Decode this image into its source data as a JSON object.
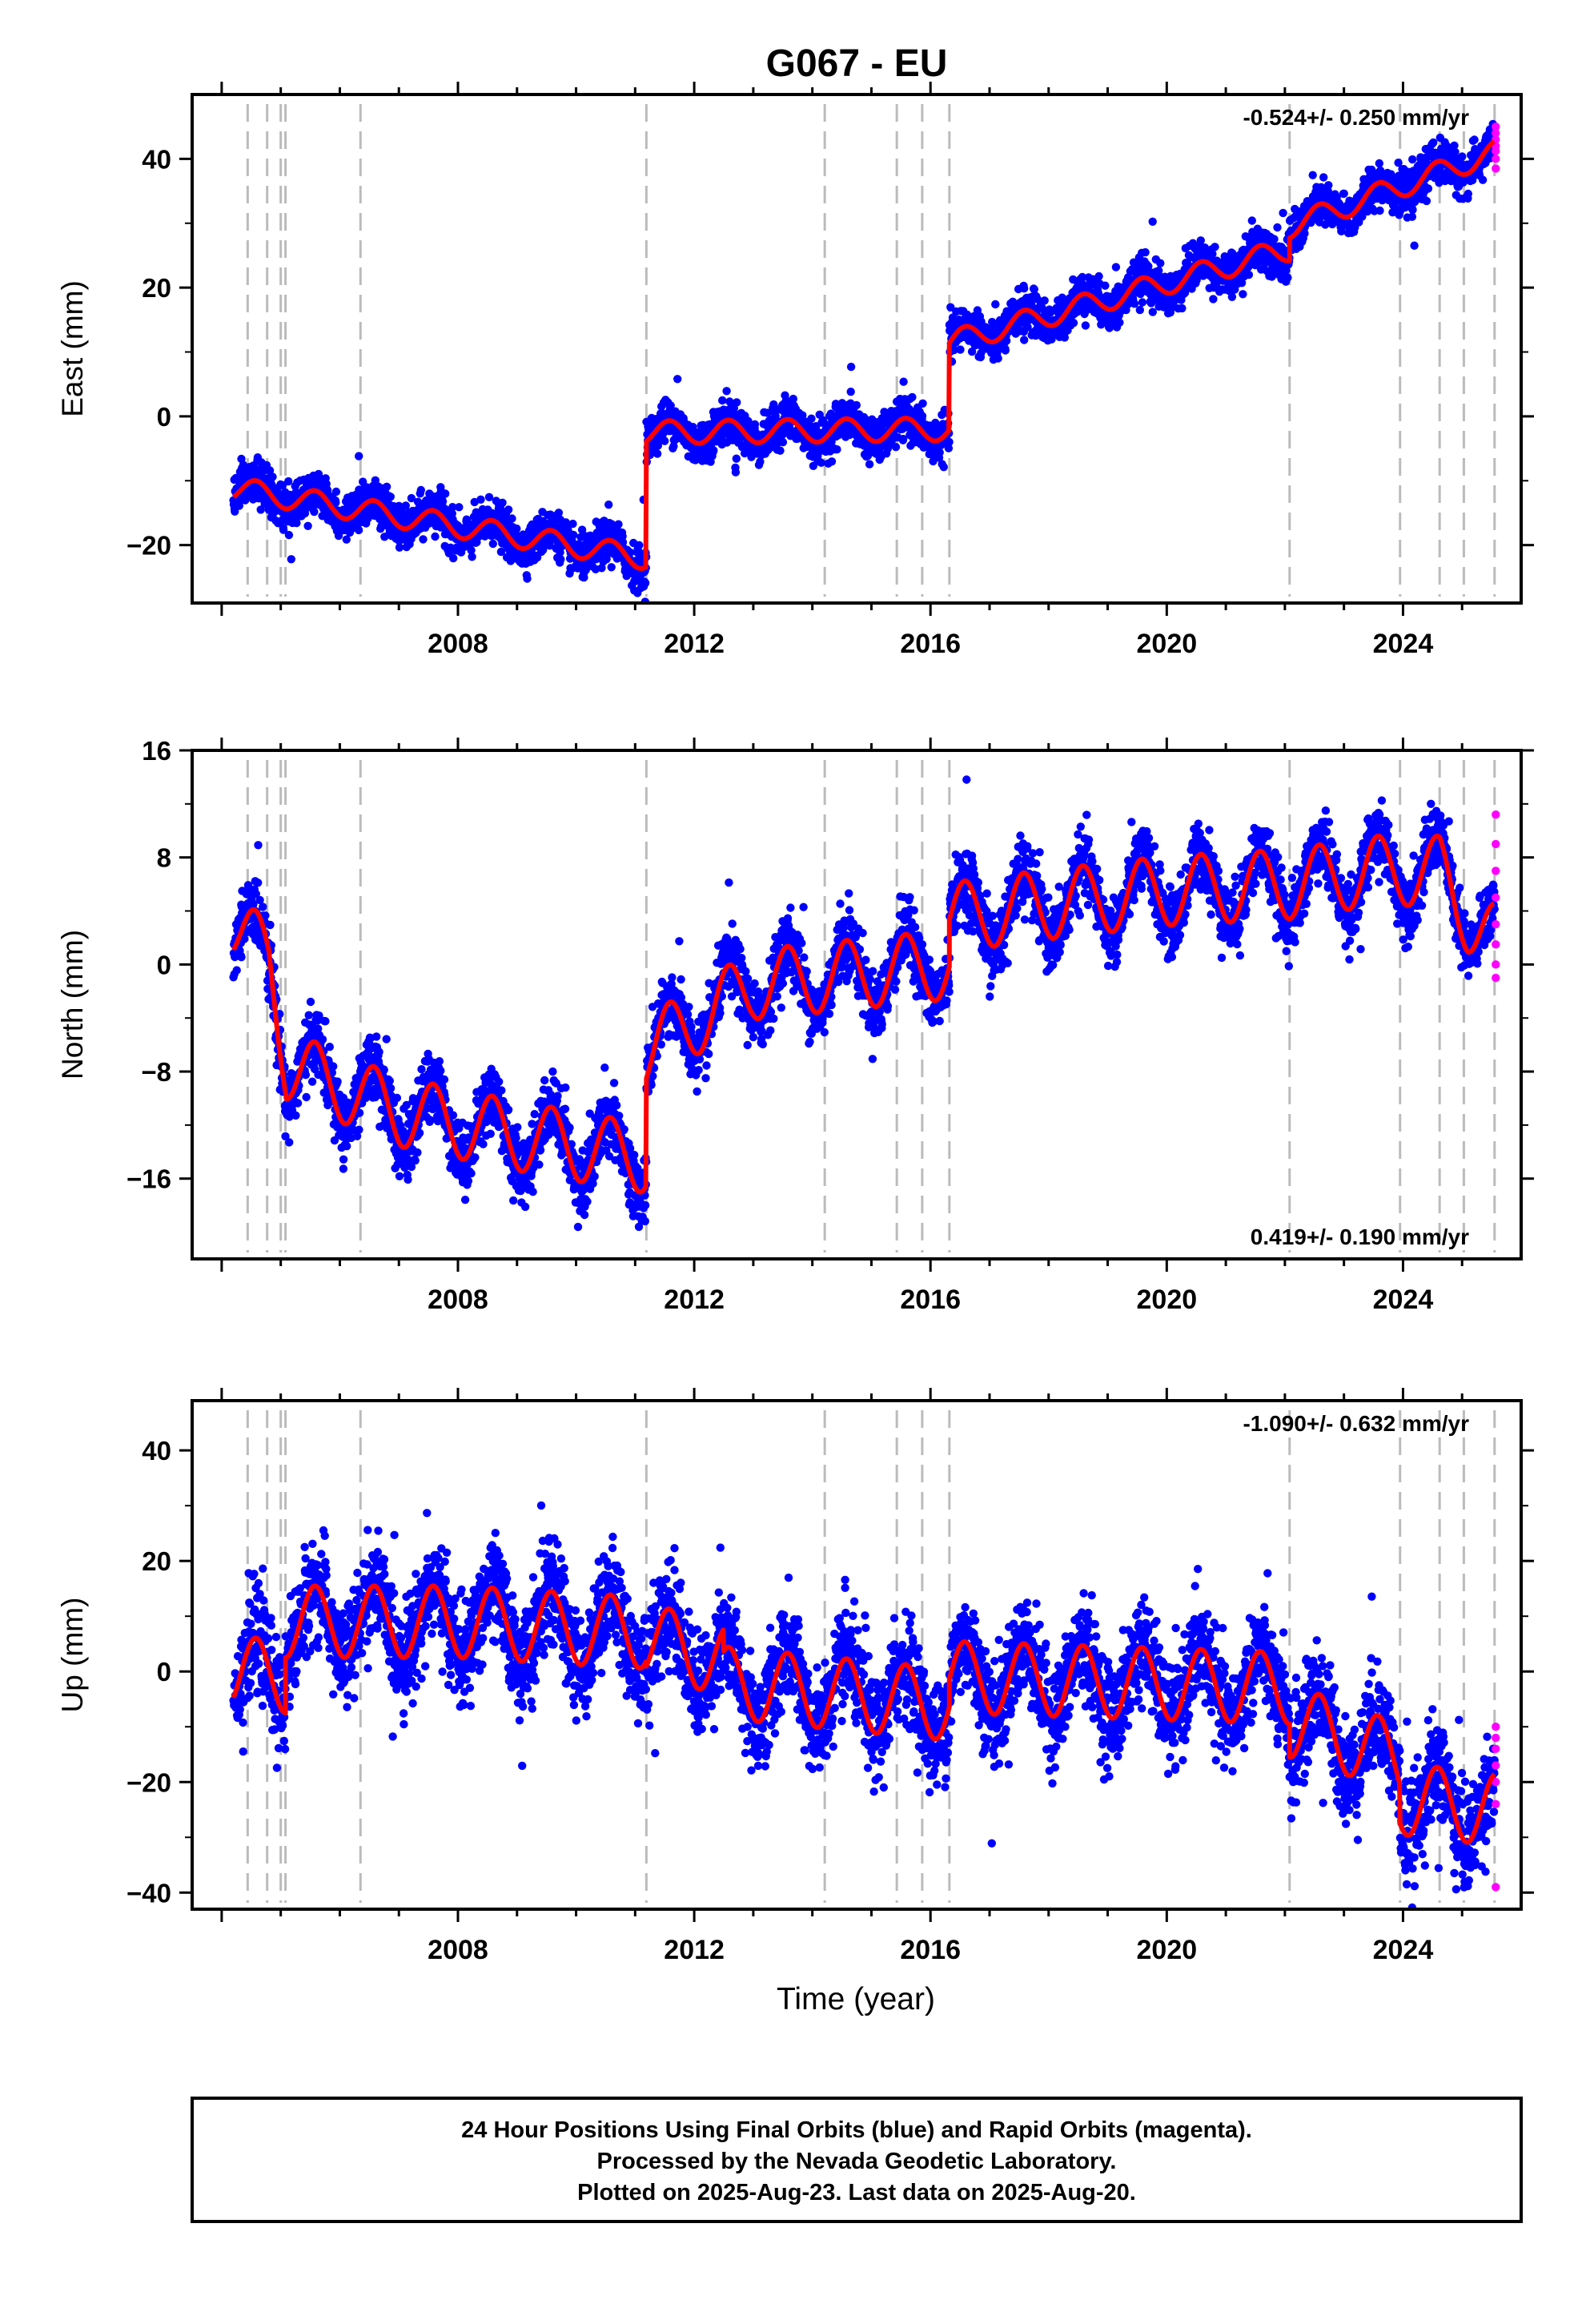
{
  "title": "G067 - EU",
  "xlabel": "Time (year)",
  "colors": {
    "final": "#0000ff",
    "rapid": "#ff00ff",
    "model": "#ff0000",
    "events": "#bbbbbb"
  },
  "chart_data": [
    {
      "type": "scatter",
      "name": "east",
      "ylabel": "East (mm)",
      "rate": "-0.524+/- 0.250 mm/yr",
      "xlim": [
        2003.5,
        2026.0
      ],
      "ylim": [
        -29,
        50
      ],
      "yticks": [
        "−20",
        "0",
        "20",
        "40"
      ],
      "ytick_values": [
        -20,
        0,
        20,
        40
      ],
      "xticks": [
        "2008",
        "2012",
        "2016",
        "2020",
        "2024"
      ],
      "xtick_values": [
        2008,
        2012,
        2016,
        2020,
        2024
      ],
      "events": [
        2004.44,
        2004.77,
        2005.0,
        2005.08,
        2006.35,
        2011.19,
        2014.21,
        2015.43,
        2015.86,
        2016.32,
        2022.08,
        2023.95,
        2024.62,
        2025.03,
        2025.55
      ],
      "trend": [
        [
          2004.2,
          -11.2
        ],
        [
          2011.19,
          -22.0
        ],
        [
          2011.19,
          -2.5
        ],
        [
          2016.32,
          -2.0
        ],
        [
          2016.32,
          11.5
        ],
        [
          2022.08,
          26.0
        ],
        [
          2022.08,
          29.5
        ],
        [
          2025.55,
          41.0
        ]
      ],
      "amplitude": 1.8,
      "scatter_sd": 1.6,
      "rapid": [
        [
          2025.57,
          38.5
        ],
        [
          2025.57,
          40.0
        ],
        [
          2025.57,
          41.2
        ],
        [
          2025.57,
          42.0
        ],
        [
          2025.57,
          43.0
        ],
        [
          2025.57,
          44.0
        ],
        [
          2025.57,
          45.0
        ]
      ]
    },
    {
      "type": "scatter",
      "name": "north",
      "ylabel": "North (mm)",
      "rate": "0.419+/- 0.190 mm/yr",
      "xlim": [
        2003.5,
        2026.0
      ],
      "ylim": [
        -22,
        16
      ],
      "yticks": [
        "−16",
        "−8",
        "0",
        "8",
        "16"
      ],
      "ytick_values": [
        -16,
        -8,
        0,
        8,
        16
      ],
      "xticks": [
        "2008",
        "2012",
        "2016",
        "2020",
        "2024"
      ],
      "xtick_values": [
        2008,
        2012,
        2016,
        2020,
        2024
      ],
      "events": [
        2004.44,
        2004.77,
        2005.0,
        2005.08,
        2006.35,
        2011.19,
        2014.21,
        2015.43,
        2015.86,
        2016.32,
        2022.08,
        2023.95,
        2024.62,
        2025.03,
        2025.55
      ],
      "trend": [
        [
          2004.2,
          3.0
        ],
        [
          2004.8,
          0.5
        ],
        [
          2005.1,
          -7.5
        ],
        [
          2007.0,
          -11.0
        ],
        [
          2009.0,
          -12.8
        ],
        [
          2011.19,
          -14.5
        ],
        [
          2011.19,
          -6.5
        ],
        [
          2013.0,
          -1.5
        ],
        [
          2016.32,
          0.0
        ],
        [
          2016.32,
          3.5
        ],
        [
          2018.0,
          4.5
        ],
        [
          2020.0,
          5.5
        ],
        [
          2022.08,
          6.0
        ],
        [
          2023.5,
          7.0
        ],
        [
          2024.62,
          7.0
        ],
        [
          2025.1,
          3.5
        ],
        [
          2025.55,
          2.0
        ]
      ],
      "amplitude": 2.6,
      "scatter_sd": 1.2,
      "rapid": [
        [
          2025.57,
          -1.0
        ],
        [
          2025.57,
          0.0
        ],
        [
          2025.57,
          1.5
        ],
        [
          2025.57,
          3.0
        ],
        [
          2025.57,
          5.0
        ],
        [
          2025.57,
          7.0
        ],
        [
          2025.57,
          9.0
        ],
        [
          2025.57,
          11.2
        ]
      ]
    },
    {
      "type": "scatter",
      "name": "up",
      "ylabel": "Up (mm)",
      "rate": "-1.090+/- 0.632 mm/yr",
      "xlim": [
        2003.5,
        2026.0
      ],
      "ylim": [
        -43,
        49
      ],
      "yticks": [
        "−40",
        "−20",
        "0",
        "20",
        "40"
      ],
      "ytick_values": [
        -40,
        -20,
        0,
        20,
        40
      ],
      "xticks": [
        "2008",
        "2012",
        "2016",
        "2020",
        "2024"
      ],
      "xtick_values": [
        2008,
        2012,
        2016,
        2020,
        2024
      ],
      "events": [
        2004.44,
        2004.77,
        2005.0,
        2005.08,
        2006.35,
        2011.19,
        2014.21,
        2015.43,
        2015.86,
        2016.32,
        2022.08,
        2023.95,
        2024.62,
        2025.03,
        2025.55
      ],
      "trend": [
        [
          2004.2,
          0.0
        ],
        [
          2005.08,
          -1.0
        ],
        [
          2005.08,
          9.0
        ],
        [
          2008.0,
          9.0
        ],
        [
          2011.19,
          7.0
        ],
        [
          2011.19,
          6.0
        ],
        [
          2012.5,
          2.0
        ],
        [
          2012.5,
          -2.0
        ],
        [
          2016.32,
          -6.0
        ],
        [
          2016.32,
          -1.0
        ],
        [
          2022.08,
          -3.0
        ],
        [
          2022.08,
          -9.0
        ],
        [
          2023.0,
          -12.0
        ],
        [
          2023.95,
          -16.0
        ],
        [
          2023.95,
          -23.0
        ],
        [
          2025.55,
          -25.0
        ]
      ],
      "amplitude": 6.5,
      "scatter_sd": 4.5,
      "rapid": [
        [
          2025.57,
          -39.0
        ],
        [
          2025.57,
          -24.0
        ],
        [
          2025.57,
          -20.0
        ],
        [
          2025.57,
          -17.0
        ],
        [
          2025.57,
          -14.0
        ],
        [
          2025.57,
          -12.0
        ],
        [
          2025.57,
          -10.0
        ]
      ]
    }
  ],
  "footer": {
    "line1": "24 Hour Positions Using Final Orbits (blue) and Rapid Orbits (magenta).",
    "line2": "Processed by the Nevada Geodetic Laboratory.",
    "line3": "Plotted on 2025-Aug-23. Last data on 2025-Aug-20."
  }
}
